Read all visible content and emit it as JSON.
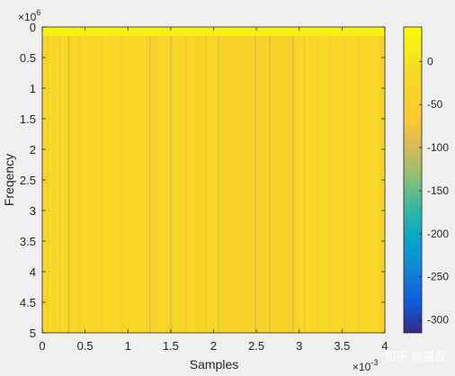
{
  "chart_data": {
    "type": "heatmap",
    "title": "",
    "xlabel": "Samples",
    "ylabel": "Freqency",
    "x_multiplier": "×10",
    "x_exponent": "-3",
    "y_multiplier": "×10",
    "y_exponent": "6",
    "xlim": [
      0,
      0.004
    ],
    "ylim": [
      0,
      5000000
    ],
    "y_reversed": true,
    "x_ticks": [
      0,
      0.0005,
      0.001,
      0.0015,
      0.002,
      0.0025,
      0.003,
      0.0035,
      0.004
    ],
    "x_tick_labels": [
      "0",
      "0.5",
      "1",
      "1.5",
      "2",
      "2.5",
      "3",
      "3.5",
      "4"
    ],
    "y_ticks": [
      0,
      500000,
      1000000,
      1500000,
      2000000,
      2500000,
      3000000,
      3500000,
      4000000,
      4500000,
      5000000
    ],
    "y_tick_labels": [
      "0",
      "0.5",
      "1",
      "1.5",
      "2",
      "2.5",
      "3",
      "3.5",
      "4",
      "4.5",
      "5"
    ],
    "colorbar": {
      "range": [
        -315,
        40
      ],
      "ticks": [
        0,
        -50,
        -100,
        -150,
        -200,
        -250,
        -300
      ],
      "tick_labels": [
        "0",
        "-50",
        "-100",
        "-150",
        "-200",
        "-250",
        "-300"
      ],
      "colormap": "parula"
    },
    "regions": [
      {
        "x": [
          0,
          0.004
        ],
        "y": [
          0,
          150000
        ],
        "value": 25
      },
      {
        "x": [
          0,
          0.001
        ],
        "y": [
          150000,
          5000000
        ],
        "value": -20
      },
      {
        "x": [
          0.001,
          0.002
        ],
        "y": [
          150000,
          5000000
        ],
        "value": -21
      },
      {
        "x": [
          0.002,
          0.003
        ],
        "y": [
          150000,
          5000000
        ],
        "value": -30
      },
      {
        "x": [
          0.003,
          0.004
        ],
        "y": [
          150000,
          5000000
        ],
        "value": -18
      }
    ],
    "lighter_bands_x": [
      5e-05,
      0.00012,
      0.00019,
      0.0003,
      0.00042,
      0.00055,
      0.00068,
      0.0008,
      0.00092,
      0.00121,
      0.0013,
      0.00148,
      0.00167,
      0.0018,
      0.0019,
      0.00235,
      0.00252,
      0.00268,
      0.00287,
      0.00305,
      0.0032,
      0.00335,
      0.00352,
      0.00368,
      0.00382,
      0.00395
    ],
    "greener_bands_x": [
      0.0003,
      0.00125,
      0.0015,
      0.00205,
      0.00248,
      0.00265,
      0.00292
    ]
  },
  "watermark": "知乎 @猫叔"
}
